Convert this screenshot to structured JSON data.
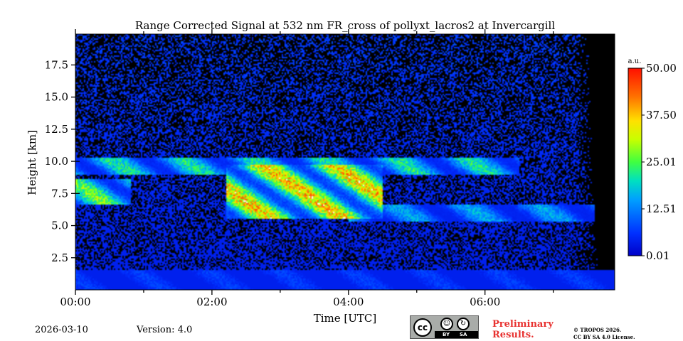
{
  "chart_data": {
    "type": "heatmap",
    "title": "Range Corrected Signal at 532 nm FR_cross of pollyxt_lacros2 at Invercargill",
    "xlabel": "Time [UTC]",
    "ylabel": "Height [km]",
    "xlim_hours": [
      0,
      7.9
    ],
    "ylim_km": [
      0,
      19.9
    ],
    "xticks": [
      {
        "value": 0,
        "label": "00:00"
      },
      {
        "value": 2,
        "label": "02:00"
      },
      {
        "value": 4,
        "label": "04:00"
      },
      {
        "value": 6,
        "label": "06:00"
      }
    ],
    "yticks": [
      {
        "value": 2.5,
        "label": "2.5"
      },
      {
        "value": 5.0,
        "label": "5.0"
      },
      {
        "value": 7.5,
        "label": "7.5"
      },
      {
        "value": 10.0,
        "label": "10.0"
      },
      {
        "value": 12.5,
        "label": "12.5"
      },
      {
        "value": 15.0,
        "label": "15.0"
      },
      {
        "value": 17.5,
        "label": "17.5"
      }
    ],
    "colorbar": {
      "unit": "a.u.",
      "min": 0.01,
      "max": 50.0,
      "ticks": [
        "0.01",
        "12.51",
        "25.01",
        "37.50",
        "50.00"
      ]
    },
    "features": [
      {
        "name": "cirrus-upper",
        "start": 0.0,
        "end": 6.5,
        "base_km": 9.0,
        "top_km": 10.3,
        "intensity": 0.55
      },
      {
        "name": "cirrus-core",
        "start": 2.2,
        "end": 4.5,
        "base_km": 5.6,
        "top_km": 9.8,
        "intensity": 0.95
      },
      {
        "name": "cirrus-early",
        "start": 0.0,
        "end": 0.8,
        "base_km": 6.7,
        "top_km": 8.7,
        "intensity": 0.7
      },
      {
        "name": "lower-layer",
        "start": 4.0,
        "end": 7.6,
        "base_km": 5.4,
        "top_km": 6.7,
        "intensity": 0.4
      },
      {
        "name": "boundary-layer",
        "start": 0.0,
        "end": 7.9,
        "base_km": 0.0,
        "top_km": 1.6,
        "intensity": 0.18
      }
    ]
  },
  "footer": {
    "date": "2026-03-10",
    "version": "Version: 4.0",
    "preliminary_line1": "Preliminary",
    "preliminary_line2": "Results.",
    "copyright_line1": "© TROPOS 2026.",
    "copyright_line2": "CC BY SA 4.0 License."
  },
  "license_badge": {
    "cc": "cc",
    "by": "BY",
    "sa": "SA"
  }
}
